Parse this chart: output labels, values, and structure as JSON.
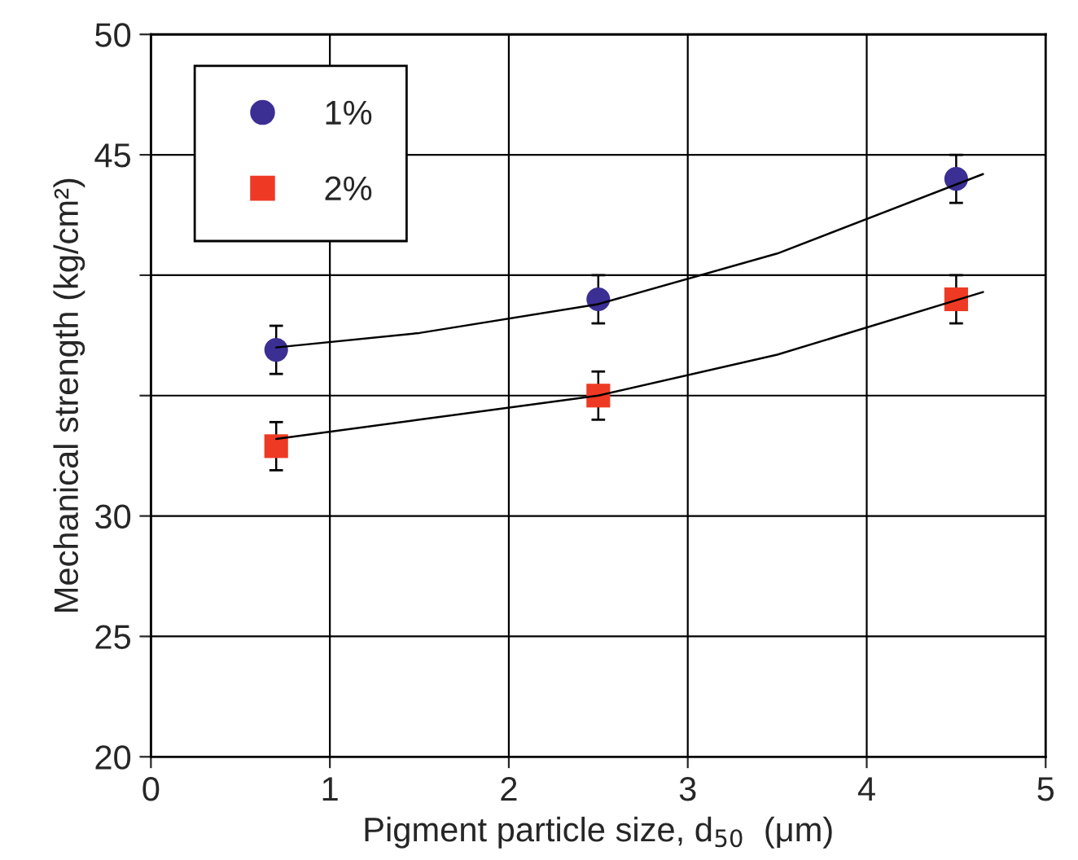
{
  "chart_data": {
    "type": "scatter",
    "xlabel": "Pigment particle size, d$_{50}$  (μm)",
    "ylabel": "Mechanical strength (kg/cm²)",
    "xlim": [
      0,
      5
    ],
    "xticks": [
      0,
      1,
      2,
      3,
      4,
      5
    ],
    "ylim": [
      20,
      50
    ],
    "yticks": [
      20,
      25,
      30,
      {
        "value": 35,
        "label": null
      },
      {
        "value": 40,
        "label": null
      },
      45,
      50
    ],
    "grid": true,
    "legend": "top left",
    "series": [
      {
        "name": "1%",
        "color": "#3b2f94",
        "marker": "circle",
        "x": [
          0.7,
          2.5,
          4.5
        ],
        "values": [
          36.9,
          39.0,
          44.0
        ],
        "errors": [
          1,
          1,
          1
        ]
      },
      {
        "name": "2%",
        "color": "#ee3a24",
        "marker": "square",
        "x": [
          0.7,
          2.5,
          4.5
        ],
        "values": [
          32.9,
          35.0,
          39.0
        ],
        "errors": [
          1,
          1,
          1
        ]
      },
      {
        "type": "line",
        "color": "#000000",
        "marker": "none",
        "x": [
          0.7,
          1.5,
          2.5,
          3.5,
          4.65
        ],
        "values": [
          37.0,
          37.6,
          38.8,
          40.9,
          44.2
        ]
      },
      {
        "type": "line",
        "color": "#000000",
        "marker": "none",
        "x": [
          0.7,
          1.5,
          2.5,
          3.5,
          4.65
        ],
        "values": [
          33.2,
          34.0,
          35.0,
          36.7,
          39.3
        ]
      }
    ]
  }
}
